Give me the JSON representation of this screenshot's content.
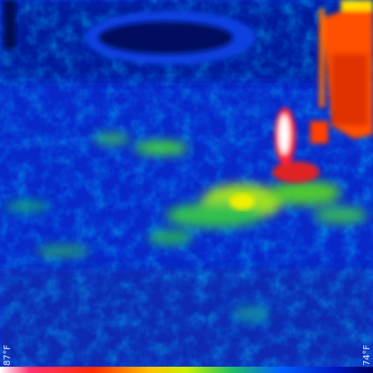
{
  "scale": {
    "max_label": "87°F",
    "min_label": "74°F"
  }
}
